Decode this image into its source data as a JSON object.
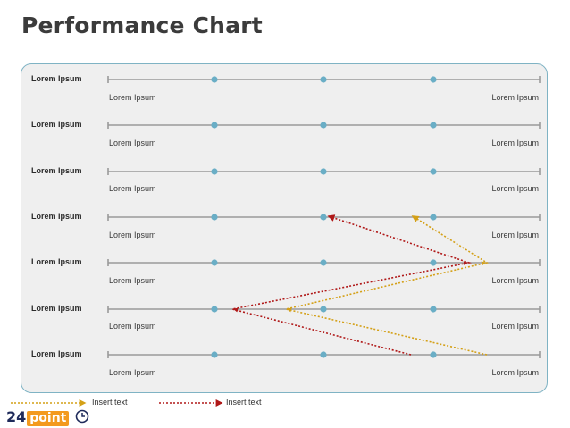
{
  "title": "Performance Chart",
  "rows": [
    {
      "label": "Lorem Ipsum",
      "left_sub": "Lorem Ipsum",
      "right_sub": "Lorem Ipsum"
    },
    {
      "label": "Lorem Ipsum",
      "left_sub": "Lorem Ipsum",
      "right_sub": "Lorem Ipsum"
    },
    {
      "label": "Lorem Ipsum",
      "left_sub": "Lorem Ipsum",
      "right_sub": "Lorem Ipsum"
    },
    {
      "label": "Lorem Ipsum",
      "left_sub": "Lorem Ipsum",
      "right_sub": "Lorem Ipsum"
    },
    {
      "label": "Lorem Ipsum",
      "left_sub": "Lorem Ipsum",
      "right_sub": "Lorem Ipsum"
    },
    {
      "label": "Lorem Ipsum",
      "left_sub": "Lorem Ipsum",
      "right_sub": "Lorem Ipsum"
    },
    {
      "label": "Lorem Ipsum",
      "left_sub": "Lorem Ipsum",
      "right_sub": "Lorem Ipsum"
    }
  ],
  "legend": [
    {
      "text": "Insert text",
      "color": "#d4a017"
    },
    {
      "text": "Insert text",
      "color": "#b01818"
    }
  ],
  "logo": {
    "number": "24",
    "word": "point"
  },
  "colors": {
    "track": "#9a9a9a",
    "marker": "#6aaec6",
    "panel_border": "#7fb3c4",
    "gold": "#d4a017",
    "red": "#b01818"
  }
}
